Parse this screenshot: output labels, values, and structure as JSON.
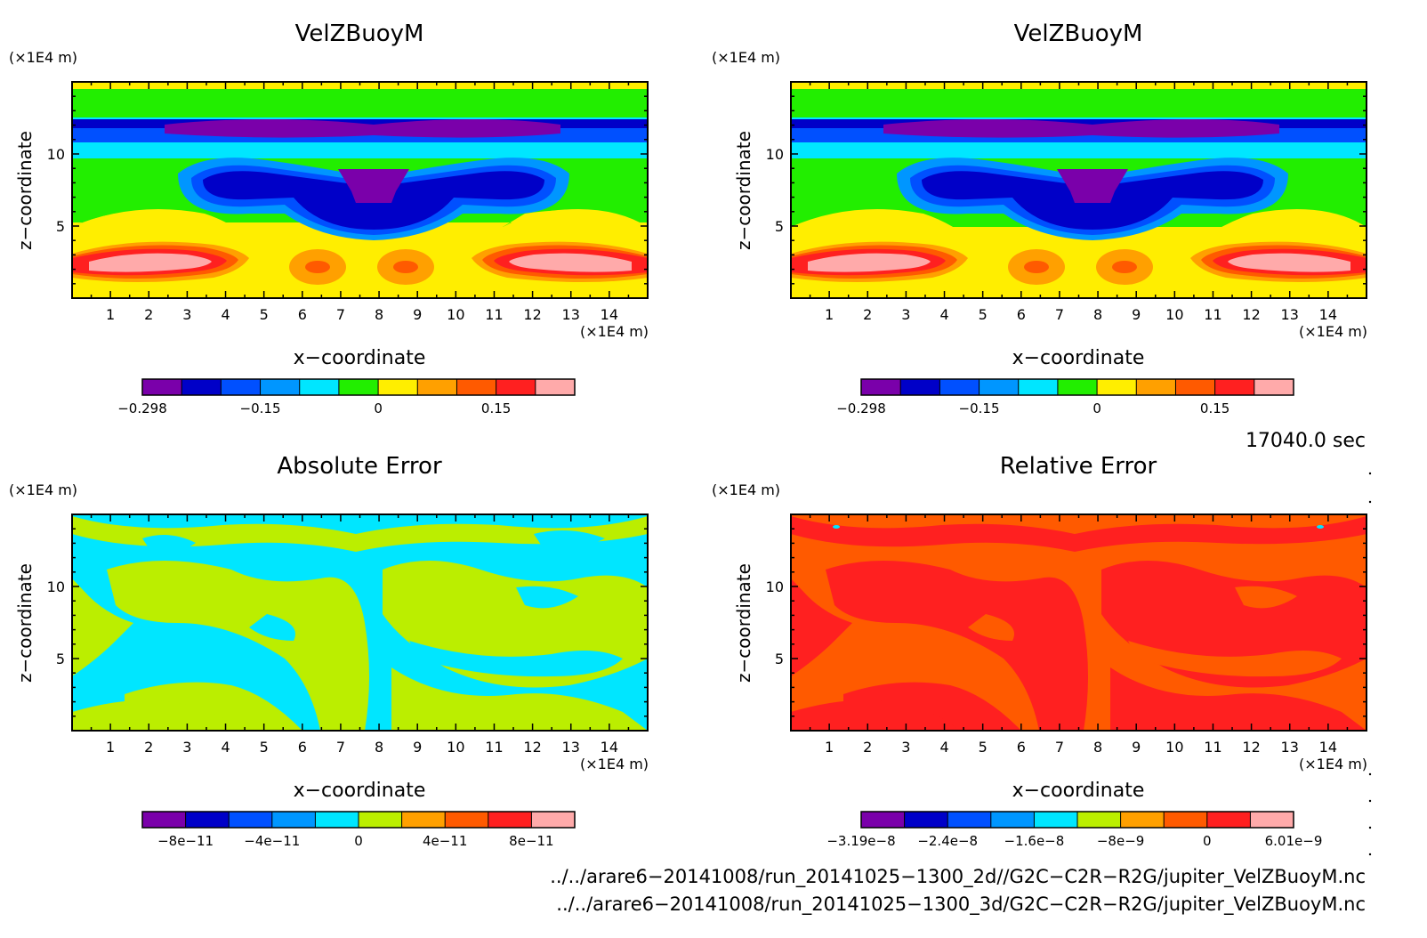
{
  "chart_data": [
    {
      "type": "heatmap",
      "title": "VelZBuoyM",
      "xlabel": "x−coordinate",
      "ylabel": "z−coordinate",
      "x_unit": "(×1E4 m)",
      "y_unit": "(×1E4 m)",
      "xlim": [
        0,
        15
      ],
      "ylim": [
        0,
        15
      ],
      "x_ticks": [
        1,
        2,
        3,
        4,
        5,
        6,
        7,
        8,
        9,
        10,
        11,
        12,
        13,
        14
      ],
      "y_ticks": [
        5,
        10
      ],
      "colorbar": {
        "colors": [
          "#7a00aa",
          "#0000c8",
          "#0050ff",
          "#0096ff",
          "#00e6ff",
          "#22ee00",
          "#ffee00",
          "#ffa000",
          "#ff5a00",
          "#ff2020",
          "#ffaaaa"
        ],
        "tick_values": [
          -0.298,
          -0.15,
          0,
          0.15
        ],
        "tick_labels": [
          "−0.298",
          "−0.15",
          "0",
          "0.15"
        ],
        "tick_index": [
          0,
          3,
          6,
          9
        ]
      }
    },
    {
      "type": "heatmap",
      "title": "VelZBuoyM",
      "xlabel": "x−coordinate",
      "ylabel": "z−coordinate",
      "x_unit": "(×1E4 m)",
      "y_unit": "(×1E4 m)",
      "xlim": [
        0,
        15
      ],
      "ylim": [
        0,
        15
      ],
      "x_ticks": [
        1,
        2,
        3,
        4,
        5,
        6,
        7,
        8,
        9,
        10,
        11,
        12,
        13,
        14
      ],
      "y_ticks": [
        5,
        10
      ],
      "colorbar": {
        "colors": [
          "#7a00aa",
          "#0000c8",
          "#0050ff",
          "#0096ff",
          "#00e6ff",
          "#22ee00",
          "#ffee00",
          "#ffa000",
          "#ff5a00",
          "#ff2020",
          "#ffaaaa"
        ],
        "tick_values": [
          -0.298,
          -0.15,
          0,
          0.15
        ],
        "tick_labels": [
          "−0.298",
          "−0.15",
          "0",
          "0.15"
        ],
        "tick_index": [
          0,
          3,
          6,
          9
        ]
      }
    },
    {
      "type": "heatmap",
      "title": "Absolute Error",
      "xlabel": "x−coordinate",
      "ylabel": "z−coordinate",
      "x_unit": "(×1E4 m)",
      "y_unit": "(×1E4 m)",
      "xlim": [
        0,
        15
      ],
      "ylim": [
        0,
        15
      ],
      "x_ticks": [
        1,
        2,
        3,
        4,
        5,
        6,
        7,
        8,
        9,
        10,
        11,
        12,
        13,
        14
      ],
      "y_ticks": [
        5,
        10
      ],
      "colorbar": {
        "colors": [
          "#7a00aa",
          "#0000c8",
          "#0050ff",
          "#0096ff",
          "#00e6ff",
          "#bbee00",
          "#ffa000",
          "#ff5a00",
          "#ff2020",
          "#ffaaaa"
        ],
        "tick_values": [
          -8e-11,
          -4e-11,
          0,
          4e-11,
          8e-11
        ],
        "tick_labels": [
          "−8e−11",
          "−4e−11",
          "0",
          "4e−11",
          "8e−11"
        ],
        "tick_index": [
          1,
          3,
          5,
          7,
          9
        ]
      }
    },
    {
      "type": "heatmap",
      "title": "Relative Error",
      "xlabel": "x−coordinate",
      "ylabel": "z−coordinate",
      "x_unit": "(×1E4 m)",
      "y_unit": "(×1E4 m)",
      "xlim": [
        0,
        15
      ],
      "ylim": [
        0,
        15
      ],
      "x_ticks": [
        1,
        2,
        3,
        4,
        5,
        6,
        7,
        8,
        9,
        10,
        11,
        12,
        13,
        14
      ],
      "y_ticks": [
        5,
        10
      ],
      "colorbar": {
        "colors": [
          "#7a00aa",
          "#0000c8",
          "#0050ff",
          "#0096ff",
          "#00e6ff",
          "#bbee00",
          "#ffa000",
          "#ff5a00",
          "#ff2020",
          "#ffaaaa"
        ],
        "tick_values": [
          -3.19e-08,
          -2.4e-08,
          -1.6e-08,
          -8e-09,
          0,
          6.01e-09
        ],
        "tick_labels": [
          "−3.19e−8",
          "−2.4e−8",
          "−1.6e−8",
          "−8e−9",
          "0",
          "6.01e−9"
        ],
        "tick_index": [
          0,
          2,
          4,
          6,
          8,
          10
        ]
      }
    }
  ],
  "time_label": "17040.0 sec",
  "file_paths": [
    "../../arare6−20141008/run_20141025−1300_2d//G2C−C2R−R2G/jupiter_VelZBuoyM.nc",
    "../../arare6−20141008/run_20141025−1300_3d/G2C−C2R−R2G/jupiter_VelZBuoyM.nc"
  ]
}
